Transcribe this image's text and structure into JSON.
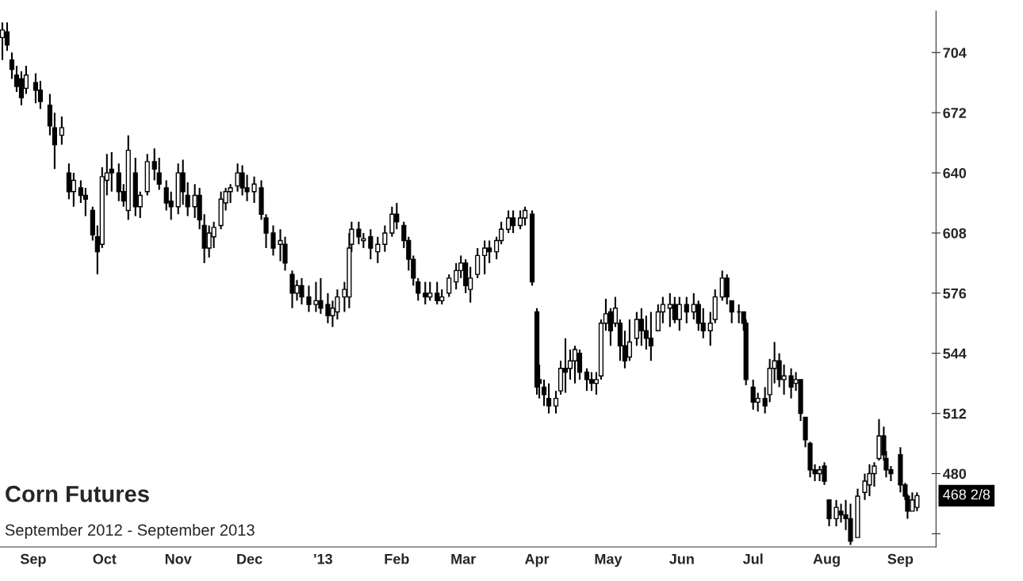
{
  "chart_data": {
    "type": "candlestick",
    "title": "Corn Futures",
    "subtitle": "September 2012 - September 2013",
    "color": "#000000",
    "xlim": [
      "2012-08-18",
      "2013-09-16"
    ],
    "xticks": [
      {
        "value": "2012-09-01",
        "label": "Sep"
      },
      {
        "value": "2012-10-01",
        "label": "Oct"
      },
      {
        "value": "2012-11-01",
        "label": "Nov"
      },
      {
        "value": "2012-12-01",
        "label": "Dec"
      },
      {
        "value": "2013-01-01",
        "label": "'13"
      },
      {
        "value": "2013-02-01",
        "label": "Feb"
      },
      {
        "value": "2013-03-01",
        "label": "Mar"
      },
      {
        "value": "2013-04-01",
        "label": "Apr"
      },
      {
        "value": "2013-05-01",
        "label": "May"
      },
      {
        "value": "2013-06-01",
        "label": "Jun"
      },
      {
        "value": "2013-07-01",
        "label": "Jul"
      },
      {
        "value": "2013-08-01",
        "label": "Aug"
      },
      {
        "value": "2013-09-01",
        "label": "Sep"
      }
    ],
    "ylim": [
      441,
      726
    ],
    "yticks": [
      {
        "value": 448,
        "label": null
      },
      480,
      512,
      544,
      576,
      608,
      640,
      672,
      704
    ],
    "annotations": [
      "468 2/8"
    ],
    "x": [
      "2012-08-19",
      "2012-08-21",
      "2012-08-23",
      "2012-08-25",
      "2012-08-27",
      "2012-08-29",
      "2012-09-02",
      "2012-09-04",
      "2012-09-08",
      "2012-09-10",
      "2012-09-13",
      "2012-09-16",
      "2012-09-18",
      "2012-09-21",
      "2012-09-23",
      "2012-09-26",
      "2012-09-28",
      "2012-09-30",
      "2012-10-02",
      "2012-10-04",
      "2012-10-07",
      "2012-10-09",
      "2012-10-11",
      "2012-10-14",
      "2012-10-16",
      "2012-10-19",
      "2012-10-22",
      "2012-10-24",
      "2012-10-27",
      "2012-10-29",
      "2012-11-01",
      "2012-11-03",
      "2012-11-05",
      "2012-11-08",
      "2012-11-10",
      "2012-11-12",
      "2012-11-14",
      "2012-11-16",
      "2012-11-19",
      "2012-11-21",
      "2012-11-23",
      "2012-11-26",
      "2012-11-28",
      "2012-11-30",
      "2012-12-03",
      "2012-12-06",
      "2012-12-08",
      "2012-12-11",
      "2012-12-14",
      "2012-12-16",
      "2012-12-19",
      "2012-12-21",
      "2012-12-23",
      "2012-12-26",
      "2012-12-29",
      "2012-12-31",
      "2013-01-03",
      "2013-01-05",
      "2013-01-07",
      "2013-01-10",
      "2013-01-12",
      "2013-01-13",
      "2013-01-16",
      "2013-01-18",
      "2013-01-21",
      "2013-01-24",
      "2013-01-27",
      "2013-01-30",
      "2013-02-01",
      "2013-02-04",
      "2013-02-06",
      "2013-02-08",
      "2013-02-10",
      "2013-02-13",
      "2013-02-15",
      "2013-02-18",
      "2013-02-20",
      "2013-02-23",
      "2013-02-26",
      "2013-02-28",
      "2013-03-02",
      "2013-03-04",
      "2013-03-07",
      "2013-03-10",
      "2013-03-12",
      "2013-03-15",
      "2013-03-17",
      "2013-03-20",
      "2013-03-22",
      "2013-03-25",
      "2013-03-27",
      "2013-03-30",
      "2013-04-01",
      "2013-04-02",
      "2013-04-04",
      "2013-04-06",
      "2013-04-09",
      "2013-04-11",
      "2013-04-13",
      "2013-04-15",
      "2013-04-17",
      "2013-04-19",
      "2013-04-22",
      "2013-04-24",
      "2013-04-26",
      "2013-04-28",
      "2013-04-30",
      "2013-05-02",
      "2013-05-04",
      "2013-05-06",
      "2013-05-08",
      "2013-05-10",
      "2013-05-13",
      "2013-05-15",
      "2013-05-17",
      "2013-05-19",
      "2013-05-22",
      "2013-05-24",
      "2013-05-27",
      "2013-05-29",
      "2013-05-31",
      "2013-06-03",
      "2013-06-06",
      "2013-06-08",
      "2013-06-10",
      "2013-06-13",
      "2013-06-15",
      "2013-06-18",
      "2013-06-20",
      "2013-06-22",
      "2013-06-25",
      "2013-06-27",
      "2013-06-28",
      "2013-07-01",
      "2013-07-03",
      "2013-07-06",
      "2013-07-08",
      "2013-07-10",
      "2013-07-12",
      "2013-07-14",
      "2013-07-17",
      "2013-07-19",
      "2013-07-21",
      "2013-07-23",
      "2013-07-25",
      "2013-07-27",
      "2013-07-29",
      "2013-07-31",
      "2013-08-02",
      "2013-08-05",
      "2013-08-07",
      "2013-08-09",
      "2013-08-11",
      "2013-08-14",
      "2013-08-17",
      "2013-08-19",
      "2013-08-21",
      "2013-08-23",
      "2013-08-25",
      "2013-08-26",
      "2013-08-28",
      "2013-09-01",
      "2013-09-03",
      "2013-09-04",
      "2013-09-06",
      "2013-09-08"
    ],
    "ohlc": [
      [
        712,
        720,
        700,
        716
      ],
      [
        715,
        720,
        705,
        708
      ],
      [
        700,
        704,
        690,
        695
      ],
      [
        692,
        697,
        683,
        686
      ],
      [
        690,
        694,
        676,
        680
      ],
      [
        685,
        697,
        682,
        692
      ],
      [
        688,
        693,
        677,
        684
      ],
      [
        684,
        689,
        674,
        678
      ],
      [
        676,
        682,
        660,
        665
      ],
      [
        664,
        672,
        642,
        655
      ],
      [
        660,
        670,
        655,
        664
      ],
      [
        640,
        645,
        626,
        630
      ],
      [
        630,
        640,
        622,
        636
      ],
      [
        632,
        636,
        624,
        628
      ],
      [
        628,
        632,
        617,
        626
      ],
      [
        620,
        622,
        604,
        607
      ],
      [
        606,
        612,
        586,
        598
      ],
      [
        602,
        643,
        600,
        638
      ],
      [
        636,
        650,
        628,
        640
      ],
      [
        642,
        651,
        630,
        640
      ],
      [
        640,
        645,
        625,
        630
      ],
      [
        630,
        634,
        622,
        625
      ],
      [
        620,
        660,
        615,
        652
      ],
      [
        640,
        648,
        617,
        622
      ],
      [
        622,
        630,
        616,
        628
      ],
      [
        630,
        650,
        628,
        646
      ],
      [
        646,
        653,
        636,
        642
      ],
      [
        640,
        648,
        631,
        634
      ],
      [
        632,
        636,
        620,
        624
      ],
      [
        625,
        630,
        615,
        622
      ],
      [
        622,
        645,
        618,
        640
      ],
      [
        640,
        647,
        623,
        630
      ],
      [
        628,
        635,
        617,
        622
      ],
      [
        622,
        634,
        616,
        628
      ],
      [
        628,
        632,
        610,
        615
      ],
      [
        612,
        618,
        592,
        600
      ],
      [
        600,
        612,
        595,
        608
      ],
      [
        606,
        614,
        600,
        611
      ],
      [
        612,
        630,
        610,
        626
      ],
      [
        624,
        632,
        620,
        630
      ],
      [
        630,
        634,
        624,
        632
      ],
      [
        633,
        645,
        630,
        640
      ],
      [
        640,
        644,
        628,
        632
      ],
      [
        632,
        639,
        625,
        630
      ],
      [
        630,
        638,
        624,
        634
      ],
      [
        632,
        636,
        615,
        618
      ],
      [
        616,
        618,
        600,
        608
      ],
      [
        608,
        612,
        596,
        600
      ],
      [
        602,
        610,
        593,
        604
      ],
      [
        602,
        606,
        588,
        592
      ],
      [
        586,
        588,
        568,
        576
      ],
      [
        576,
        583,
        572,
        580
      ],
      [
        580,
        584,
        570,
        574
      ],
      [
        574,
        580,
        566,
        570
      ],
      [
        570,
        582,
        566,
        572
      ],
      [
        572,
        584,
        565,
        568
      ],
      [
        570,
        576,
        560,
        564
      ],
      [
        564,
        572,
        558,
        568
      ],
      [
        566,
        578,
        562,
        574
      ],
      [
        574,
        582,
        566,
        578
      ],
      [
        574,
        608,
        568,
        600
      ],
      [
        602,
        614,
        598,
        610
      ],
      [
        610,
        614,
        602,
        606
      ],
      [
        604,
        608,
        600,
        605
      ],
      [
        606,
        610,
        594,
        600
      ],
      [
        598,
        606,
        592,
        602
      ],
      [
        602,
        612,
        598,
        608
      ],
      [
        608,
        622,
        606,
        618
      ],
      [
        618,
        624,
        610,
        614
      ],
      [
        612,
        614,
        600,
        604
      ],
      [
        604,
        606,
        588,
        594
      ],
      [
        594,
        596,
        580,
        584
      ],
      [
        582,
        584,
        572,
        576
      ],
      [
        576,
        582,
        570,
        574
      ],
      [
        574,
        582,
        572,
        576
      ],
      [
        576,
        582,
        570,
        572
      ],
      [
        572,
        578,
        570,
        574
      ],
      [
        576,
        586,
        574,
        584
      ],
      [
        582,
        592,
        578,
        588
      ],
      [
        588,
        596,
        584,
        592
      ],
      [
        592,
        594,
        576,
        580
      ],
      [
        578,
        590,
        571,
        584
      ],
      [
        586,
        600,
        584,
        596
      ],
      [
        596,
        604,
        586,
        600
      ],
      [
        600,
        604,
        592,
        598
      ],
      [
        598,
        606,
        594,
        604
      ],
      [
        604,
        614,
        602,
        610
      ],
      [
        610,
        620,
        608,
        616
      ],
      [
        616,
        620,
        608,
        612
      ],
      [
        612,
        620,
        610,
        616
      ],
      [
        616,
        622,
        612,
        620
      ],
      [
        618,
        620,
        580,
        582
      ],
      [
        566,
        568,
        522,
        526
      ],
      [
        530,
        538,
        520,
        528
      ],
      [
        526,
        530,
        516,
        522
      ],
      [
        520,
        528,
        512,
        516
      ],
      [
        516,
        524,
        512,
        520
      ],
      [
        524,
        540,
        522,
        536
      ],
      [
        536,
        552,
        523,
        534
      ],
      [
        536,
        546,
        530,
        540
      ],
      [
        540,
        548,
        528,
        546
      ],
      [
        544,
        546,
        530,
        534
      ],
      [
        534,
        536,
        524,
        530
      ],
      [
        530,
        534,
        524,
        528
      ],
      [
        528,
        534,
        522,
        530
      ],
      [
        532,
        562,
        530,
        560
      ],
      [
        560,
        573,
        556,
        565
      ],
      [
        566,
        568,
        548,
        556
      ],
      [
        560,
        574,
        558,
        568
      ],
      [
        560,
        562,
        540,
        548
      ],
      [
        548,
        556,
        536,
        540
      ],
      [
        542,
        562,
        540,
        550
      ],
      [
        552,
        566,
        548,
        562
      ],
      [
        562,
        568,
        548,
        556
      ],
      [
        556,
        564,
        546,
        552
      ],
      [
        552,
        566,
        540,
        548
      ],
      [
        556,
        570,
        556,
        566
      ],
      [
        566,
        574,
        560,
        570
      ],
      [
        568,
        576,
        558,
        570
      ],
      [
        570,
        574,
        560,
        562
      ],
      [
        562,
        574,
        556,
        570
      ],
      [
        570,
        574,
        560,
        566
      ],
      [
        566,
        576,
        562,
        570
      ],
      [
        570,
        572,
        556,
        560
      ],
      [
        560,
        568,
        552,
        556
      ],
      [
        556,
        566,
        548,
        560
      ],
      [
        562,
        578,
        560,
        574
      ],
      [
        574,
        588,
        572,
        584
      ],
      [
        584,
        586,
        570,
        574
      ],
      [
        572,
        572,
        560,
        566
      ],
      [
        566,
        570,
        560,
        566
      ],
      [
        566,
        566,
        556,
        560
      ],
      [
        560,
        562,
        527,
        530
      ],
      [
        526,
        530,
        514,
        518
      ],
      [
        518,
        523,
        513,
        520
      ],
      [
        520,
        526,
        512,
        516
      ],
      [
        522,
        541,
        518,
        536
      ],
      [
        536,
        550,
        528,
        540
      ],
      [
        540,
        544,
        526,
        530
      ],
      [
        530,
        538,
        522,
        532
      ],
      [
        532,
        536,
        520,
        526
      ],
      [
        528,
        534,
        524,
        530
      ],
      [
        530,
        530,
        508,
        512
      ],
      [
        510,
        510,
        494,
        498
      ],
      [
        496,
        497,
        478,
        482
      ],
      [
        482,
        485,
        476,
        480
      ],
      [
        480,
        484,
        476,
        482
      ],
      [
        484,
        486,
        474,
        476
      ],
      [
        466,
        466,
        452,
        456
      ],
      [
        456,
        466,
        452,
        462
      ],
      [
        460,
        464,
        454,
        458
      ],
      [
        458,
        466,
        450,
        456
      ],
      [
        456,
        464,
        442,
        444
      ],
      [
        446,
        472,
        446,
        468
      ],
      [
        470,
        480,
        466,
        476
      ],
      [
        474,
        485,
        468,
        480
      ],
      [
        480,
        486,
        473,
        484
      ],
      [
        488,
        509,
        487,
        500
      ],
      [
        500,
        505,
        487,
        490
      ],
      [
        488,
        492,
        478,
        482
      ],
      [
        482,
        484,
        476,
        480
      ],
      [
        490,
        494,
        470,
        474
      ],
      [
        474,
        475,
        466,
        468
      ],
      [
        468,
        469,
        456,
        460
      ],
      [
        460,
        470,
        460,
        466
      ],
      [
        462,
        470,
        460,
        468.25
      ]
    ]
  }
}
